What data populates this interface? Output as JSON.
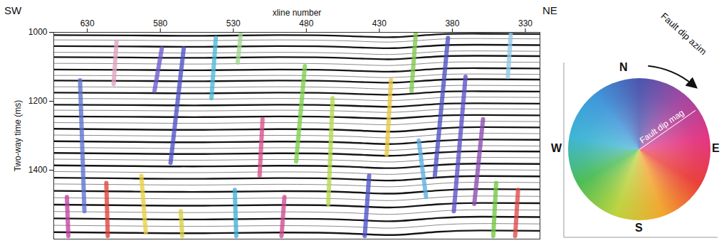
{
  "chart_data": {
    "type": "seismic_section",
    "direction_labels": [
      "SW",
      "NE"
    ],
    "xlabel": "xline number",
    "ylabel": "Two-way time (ms)",
    "xlim": [
      653,
      320
    ],
    "xticks": [
      630,
      580,
      530,
      480,
      430,
      380,
      330
    ],
    "ylim": [
      1000,
      1600
    ],
    "yticks": [
      1000,
      1200,
      1400
    ],
    "horizons": {
      "x": [
        653,
        600,
        550,
        500,
        450,
        420,
        390,
        360,
        320
      ],
      "t": [
        [
          1008,
          1009,
          1010,
          1008,
          1011,
          1014,
          1006,
          1004,
          1005
        ],
        [
          1022,
          1023,
          1024,
          1022,
          1025,
          1028,
          1020,
          1018,
          1019
        ],
        [
          1040,
          1041,
          1042,
          1040,
          1043,
          1046,
          1038,
          1036,
          1037
        ],
        [
          1058,
          1059,
          1060,
          1058,
          1061,
          1064,
          1056,
          1054,
          1055
        ],
        [
          1072,
          1073,
          1074,
          1072,
          1075,
          1078,
          1070,
          1068,
          1069
        ],
        [
          1090,
          1091,
          1092,
          1090,
          1093,
          1096,
          1088,
          1086,
          1087
        ],
        [
          1108,
          1109,
          1110,
          1108,
          1111,
          1114,
          1106,
          1104,
          1105
        ],
        [
          1125,
          1126,
          1127,
          1125,
          1128,
          1131,
          1123,
          1121,
          1122
        ],
        [
          1140,
          1141,
          1142,
          1140,
          1143,
          1146,
          1138,
          1136,
          1137
        ],
        [
          1158,
          1159,
          1160,
          1158,
          1161,
          1164,
          1156,
          1154,
          1155
        ],
        [
          1175,
          1176,
          1177,
          1175,
          1178,
          1181,
          1173,
          1171,
          1172
        ],
        [
          1192,
          1193,
          1194,
          1192,
          1195,
          1198,
          1190,
          1188,
          1189
        ],
        [
          1210,
          1211,
          1212,
          1210,
          1213,
          1216,
          1208,
          1206,
          1207
        ],
        [
          1226,
          1227,
          1228,
          1226,
          1229,
          1232,
          1224,
          1222,
          1223
        ],
        [
          1244,
          1245,
          1246,
          1244,
          1247,
          1250,
          1242,
          1240,
          1241
        ],
        [
          1262,
          1263,
          1264,
          1262,
          1265,
          1268,
          1260,
          1258,
          1259
        ],
        [
          1280,
          1282,
          1283,
          1281,
          1284,
          1288,
          1279,
          1275,
          1276
        ],
        [
          1298,
          1300,
          1301,
          1299,
          1302,
          1306,
          1297,
          1293,
          1294
        ],
        [
          1316,
          1318,
          1319,
          1317,
          1320,
          1324,
          1315,
          1311,
          1312
        ],
        [
          1334,
          1336,
          1337,
          1335,
          1338,
          1342,
          1333,
          1329,
          1330
        ],
        [
          1350,
          1352,
          1353,
          1351,
          1354,
          1358,
          1349,
          1345,
          1346
        ],
        [
          1368,
          1370,
          1371,
          1369,
          1372,
          1376,
          1367,
          1363,
          1364
        ],
        [
          1386,
          1388,
          1389,
          1387,
          1390,
          1394,
          1385,
          1381,
          1382
        ],
        [
          1404,
          1406,
          1407,
          1405,
          1408,
          1412,
          1403,
          1399,
          1400
        ],
        [
          1422,
          1424,
          1425,
          1423,
          1426,
          1430,
          1421,
          1417,
          1418
        ],
        [
          1440,
          1442,
          1443,
          1441,
          1444,
          1448,
          1439,
          1435,
          1436
        ],
        [
          1460,
          1462,
          1463,
          1461,
          1464,
          1468,
          1459,
          1455,
          1456
        ],
        [
          1480,
          1482,
          1483,
          1481,
          1484,
          1488,
          1479,
          1475,
          1476
        ],
        [
          1500,
          1502,
          1503,
          1501,
          1504,
          1508,
          1499,
          1495,
          1496
        ],
        [
          1520,
          1522,
          1523,
          1521,
          1524,
          1528,
          1519,
          1515,
          1516
        ],
        [
          1540,
          1542,
          1543,
          1541,
          1544,
          1548,
          1539,
          1535,
          1536
        ],
        [
          1560,
          1562,
          1563,
          1561,
          1564,
          1568,
          1559,
          1555,
          1556
        ],
        [
          1580,
          1582,
          1583,
          1581,
          1584,
          1588,
          1579,
          1575,
          1576
        ]
      ]
    },
    "faults": [
      {
        "x": [
          564,
          573
        ],
        "t": [
          1047,
          1379
        ],
        "color": "#4b4fc4"
      },
      {
        "x": [
          635,
          632
        ],
        "t": [
          1139,
          1519
        ],
        "color": "#5b6fd0"
      },
      {
        "x": [
          579,
          584
        ],
        "t": [
          1047,
          1170
        ],
        "color": "#6a5acd"
      },
      {
        "x": [
          481,
          487
        ],
        "t": [
          1098,
          1375
        ],
        "color": "#7ccf4a"
      },
      {
        "x": [
          462,
          465
        ],
        "t": [
          1191,
          1498
        ],
        "color": "#b5d84a"
      },
      {
        "x": [
          383,
          392
        ],
        "t": [
          1016,
          1416
        ],
        "color": "#4a4fc0"
      },
      {
        "x": [
          371,
          379
        ],
        "t": [
          1129,
          1519
        ],
        "color": "#5a50c8"
      },
      {
        "x": [
          359,
          365
        ],
        "t": [
          1252,
          1498
        ],
        "color": "#8a4ab0"
      },
      {
        "x": [
          542,
          545
        ],
        "t": [
          1016,
          1191
        ],
        "color": "#4ab8d8"
      },
      {
        "x": [
          510,
          512
        ],
        "t": [
          1252,
          1416
        ],
        "color": "#d9508a"
      },
      {
        "x": [
          422,
          425
        ],
        "t": [
          1139,
          1355
        ],
        "color": "#e8c840"
      },
      {
        "x": [
          405,
          408
        ],
        "t": [
          1000,
          1170
        ],
        "color": "#80c850"
      },
      {
        "x": [
          403,
          398
        ],
        "t": [
          1314,
          1478
        ],
        "color": "#5ab0e0"
      },
      {
        "x": [
          617,
          616
        ],
        "t": [
          1437,
          1591
        ],
        "color": "#e0403a"
      },
      {
        "x": [
          593,
          590
        ],
        "t": [
          1416,
          1580
        ],
        "color": "#e8d040"
      },
      {
        "x": [
          529,
          528
        ],
        "t": [
          1457,
          1591
        ],
        "color": "#40b0d8"
      },
      {
        "x": [
          495,
          497
        ],
        "t": [
          1478,
          1591
        ],
        "color": "#d04890"
      },
      {
        "x": [
          437,
          440
        ],
        "t": [
          1416,
          1591
        ],
        "color": "#4a50c8"
      },
      {
        "x": [
          350,
          352
        ],
        "t": [
          1437,
          1591
        ],
        "color": "#70c840"
      },
      {
        "x": [
          335,
          337
        ],
        "t": [
          1457,
          1591
        ],
        "color": "#e04848"
      },
      {
        "x": [
          644,
          643
        ],
        "t": [
          1478,
          1591
        ],
        "color": "#c040a0"
      },
      {
        "x": [
          566,
          565
        ],
        "t": [
          1519,
          1591
        ],
        "color": "#d8d040"
      },
      {
        "x": [
          610,
          612
        ],
        "t": [
          1027,
          1150
        ],
        "color": "#e0a0c0"
      },
      {
        "x": [
          525,
          527
        ],
        "t": [
          1006,
          1088
        ],
        "color": "#a0d890"
      },
      {
        "x": [
          340,
          342
        ],
        "t": [
          1006,
          1129
        ],
        "color": "#90c8e8"
      }
    ],
    "color_wheel": {
      "labels": [
        "N",
        "E",
        "S",
        "W"
      ],
      "azimuth_label": "Fault dip azim",
      "magnitude_label": "Fault dip mag",
      "colors": [
        "#3f4aa8",
        "#9a3a9a",
        "#e0287a",
        "#e8302c",
        "#f0a020",
        "#b8d030",
        "#40b848",
        "#30b0d0",
        "#3090d8"
      ]
    }
  }
}
